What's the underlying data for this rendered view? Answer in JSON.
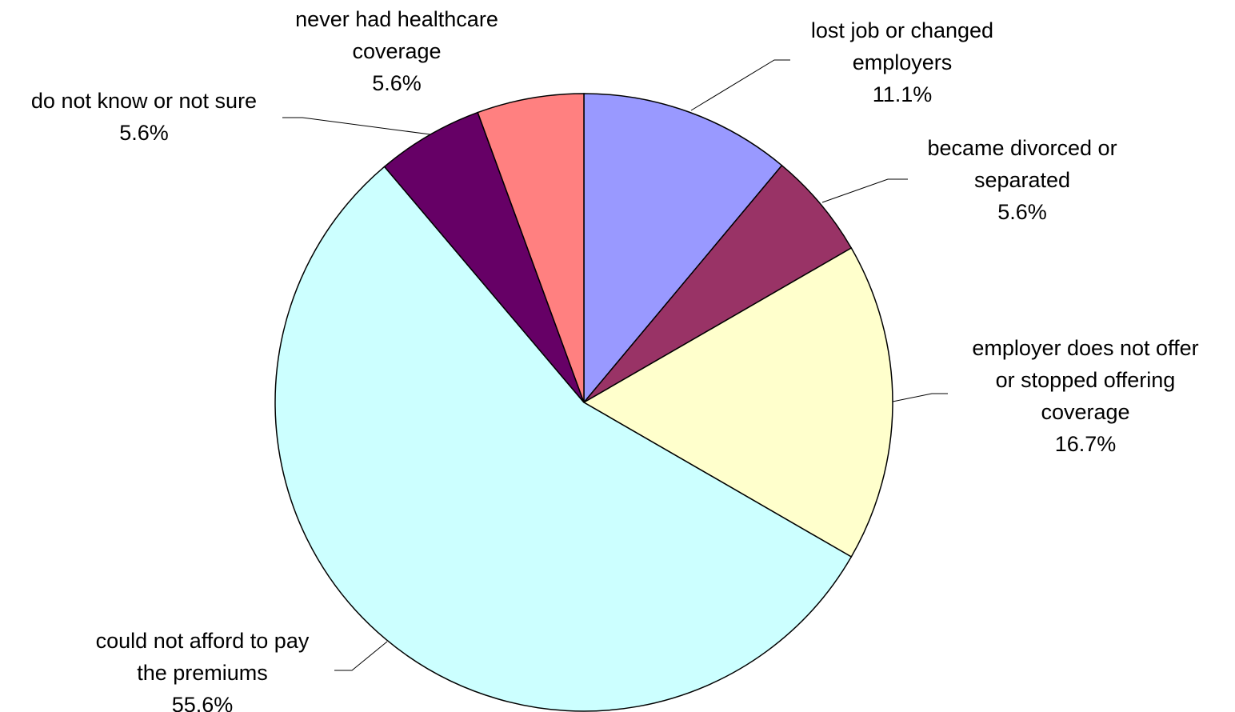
{
  "chart_data": {
    "type": "pie",
    "title": "",
    "start_angle_deg": 0,
    "direction": "clockwise",
    "slices": [
      {
        "label": "lost job or changed employers",
        "label_lines": [
          "lost job or changed",
          "employers"
        ],
        "value": 11.1,
        "value_label": "11.1%",
        "color": "#9999FF"
      },
      {
        "label": "became divorced or separated",
        "label_lines": [
          "became divorced or",
          "separated"
        ],
        "value": 5.6,
        "value_label": "5.6%",
        "color": "#993366"
      },
      {
        "label": "employer does not offer or stopped offering coverage",
        "label_lines": [
          "employer does not offer",
          "or stopped offering",
          "coverage"
        ],
        "value": 16.7,
        "value_label": "16.7%",
        "color": "#FFFFCC"
      },
      {
        "label": "could not afford to pay the premiums",
        "label_lines": [
          "could not afford to pay",
          "the premiums"
        ],
        "value": 55.6,
        "value_label": "55.6%",
        "color": "#CCFFFF"
      },
      {
        "label": "do not know or not sure",
        "label_lines": [
          "do not know or not sure"
        ],
        "value": 5.6,
        "value_label": "5.6%",
        "color": "#660066"
      },
      {
        "label": "never had healthcare coverage",
        "label_lines": [
          "never had healthcare",
          "coverage"
        ],
        "value": 5.6,
        "value_label": "5.6%",
        "color": "#FF8080"
      }
    ]
  }
}
